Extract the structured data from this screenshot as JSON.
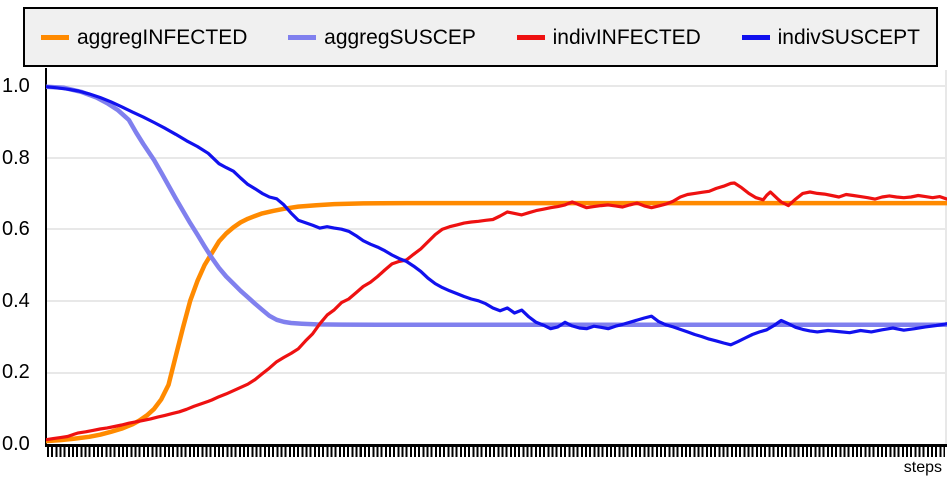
{
  "x_axis": {
    "label": "steps"
  },
  "y_axis": {
    "labels": [
      "1.0",
      "0.8",
      "0.6",
      "0.4",
      "0.2",
      "0.0"
    ]
  },
  "colors": {
    "aggreg_infected": "#FF8A00",
    "aggreg_suscep": "#8080EE",
    "indiv_infected": "#EE1111",
    "indiv_suscept": "#1111EE",
    "legend_background": "#F0F0F0",
    "legend_border": "#000000",
    "gridline": "#E8E8E8",
    "axis": "#000000"
  },
  "chart_data": {
    "type": "line",
    "title": "",
    "xlabel": "steps",
    "ylabel": "",
    "xlim_steps": [
      0,
      250
    ],
    "ylim": [
      0,
      1
    ],
    "y_ticks": [
      1.0,
      0.8,
      0.6,
      0.4,
      0.2,
      0.0
    ],
    "grid": true,
    "legend_position": "top",
    "series": [
      {
        "name": "aggregINFECTED",
        "color": "#FF8A00",
        "group": "aggregate",
        "points": [
          [
            0,
            0.008
          ],
          [
            4,
            0.011
          ],
          [
            8,
            0.015
          ],
          [
            12,
            0.02
          ],
          [
            15,
            0.026
          ],
          [
            18,
            0.034
          ],
          [
            21,
            0.043
          ],
          [
            24,
            0.055
          ],
          [
            26,
            0.066
          ],
          [
            28,
            0.08
          ],
          [
            30,
            0.098
          ],
          [
            32,
            0.125
          ],
          [
            34,
            0.165
          ],
          [
            36,
            0.245
          ],
          [
            38,
            0.325
          ],
          [
            40,
            0.4
          ],
          [
            42,
            0.455
          ],
          [
            44,
            0.5
          ],
          [
            46,
            0.533
          ],
          [
            48,
            0.566
          ],
          [
            50,
            0.588
          ],
          [
            52,
            0.605
          ],
          [
            54,
            0.619
          ],
          [
            56,
            0.629
          ],
          [
            58,
            0.637
          ],
          [
            60,
            0.644
          ],
          [
            63,
            0.651
          ],
          [
            66,
            0.657
          ],
          [
            70,
            0.663
          ],
          [
            75,
            0.667
          ],
          [
            80,
            0.67
          ],
          [
            88,
            0.672
          ],
          [
            100,
            0.673
          ],
          [
            250,
            0.673
          ]
        ]
      },
      {
        "name": "aggregSUSCEP",
        "color": "#8080EE",
        "group": "aggregate",
        "points": [
          [
            0,
            0.998
          ],
          [
            5,
            0.995
          ],
          [
            10,
            0.983
          ],
          [
            14,
            0.968
          ],
          [
            17,
            0.952
          ],
          [
            20,
            0.932
          ],
          [
            23,
            0.905
          ],
          [
            25,
            0.87
          ],
          [
            27,
            0.838
          ],
          [
            30,
            0.793
          ],
          [
            32,
            0.758
          ],
          [
            34,
            0.722
          ],
          [
            36,
            0.686
          ],
          [
            38,
            0.651
          ],
          [
            40,
            0.617
          ],
          [
            42,
            0.585
          ],
          [
            44,
            0.552
          ],
          [
            46,
            0.52
          ],
          [
            48,
            0.492
          ],
          [
            50,
            0.468
          ],
          [
            52,
            0.448
          ],
          [
            54,
            0.428
          ],
          [
            56,
            0.41
          ],
          [
            58,
            0.392
          ],
          [
            60,
            0.375
          ],
          [
            62,
            0.358
          ],
          [
            64,
            0.347
          ],
          [
            66,
            0.341
          ],
          [
            68,
            0.338
          ],
          [
            71,
            0.336
          ],
          [
            75,
            0.334
          ],
          [
            82,
            0.3335
          ],
          [
            92,
            0.333
          ],
          [
            250,
            0.333
          ]
        ]
      },
      {
        "name": "indivINFECTED",
        "color": "#EE1111",
        "group": "individual",
        "points": [
          [
            0,
            0.012
          ],
          [
            2,
            0.015
          ],
          [
            4,
            0.018
          ],
          [
            6,
            0.021
          ],
          [
            8,
            0.028
          ],
          [
            9,
            0.031
          ],
          [
            11,
            0.034
          ],
          [
            13,
            0.038
          ],
          [
            15,
            0.042
          ],
          [
            17,
            0.045
          ],
          [
            19,
            0.049
          ],
          [
            21,
            0.053
          ],
          [
            23,
            0.058
          ],
          [
            25,
            0.062
          ],
          [
            27,
            0.066
          ],
          [
            29,
            0.07
          ],
          [
            31,
            0.075
          ],
          [
            33,
            0.08
          ],
          [
            35,
            0.085
          ],
          [
            37,
            0.09
          ],
          [
            39,
            0.097
          ],
          [
            41,
            0.105
          ],
          [
            43,
            0.112
          ],
          [
            45,
            0.119
          ],
          [
            46,
            0.123
          ],
          [
            48,
            0.132
          ],
          [
            50,
            0.14
          ],
          [
            52,
            0.149
          ],
          [
            54,
            0.158
          ],
          [
            56,
            0.167
          ],
          [
            58,
            0.18
          ],
          [
            60,
            0.196
          ],
          [
            62,
            0.212
          ],
          [
            64,
            0.23
          ],
          [
            66,
            0.242
          ],
          [
            68,
            0.253
          ],
          [
            70,
            0.266
          ],
          [
            72,
            0.288
          ],
          [
            74,
            0.308
          ],
          [
            76,
            0.336
          ],
          [
            78,
            0.36
          ],
          [
            80,
            0.375
          ],
          [
            82,
            0.395
          ],
          [
            84,
            0.405
          ],
          [
            86,
            0.422
          ],
          [
            88,
            0.44
          ],
          [
            90,
            0.452
          ],
          [
            92,
            0.468
          ],
          [
            94,
            0.486
          ],
          [
            96,
            0.503
          ],
          [
            98,
            0.51
          ],
          [
            100,
            0.514
          ],
          [
            102,
            0.53
          ],
          [
            104,
            0.545
          ],
          [
            106,
            0.565
          ],
          [
            108,
            0.585
          ],
          [
            110,
            0.6
          ],
          [
            112,
            0.607
          ],
          [
            114,
            0.612
          ],
          [
            116,
            0.617
          ],
          [
            118,
            0.62
          ],
          [
            120,
            0.622
          ],
          [
            122,
            0.625
          ],
          [
            124,
            0.627
          ],
          [
            126,
            0.637
          ],
          [
            128,
            0.648
          ],
          [
            130,
            0.644
          ],
          [
            132,
            0.64
          ],
          [
            134,
            0.646
          ],
          [
            136,
            0.652
          ],
          [
            138,
            0.656
          ],
          [
            140,
            0.66
          ],
          [
            142,
            0.663
          ],
          [
            144,
            0.668
          ],
          [
            146,
            0.676
          ],
          [
            148,
            0.668
          ],
          [
            150,
            0.66
          ],
          [
            152,
            0.663
          ],
          [
            154,
            0.666
          ],
          [
            156,
            0.668
          ],
          [
            158,
            0.665
          ],
          [
            160,
            0.662
          ],
          [
            162,
            0.668
          ],
          [
            164,
            0.673
          ],
          [
            166,
            0.665
          ],
          [
            168,
            0.66
          ],
          [
            170,
            0.665
          ],
          [
            172,
            0.67
          ],
          [
            174,
            0.678
          ],
          [
            176,
            0.69
          ],
          [
            178,
            0.697
          ],
          [
            180,
            0.7
          ],
          [
            182,
            0.703
          ],
          [
            184,
            0.706
          ],
          [
            186,
            0.714
          ],
          [
            188,
            0.72
          ],
          [
            190,
            0.728
          ],
          [
            191,
            0.729
          ],
          [
            193,
            0.716
          ],
          [
            195,
            0.7
          ],
          [
            197,
            0.688
          ],
          [
            199,
            0.682
          ],
          [
            200,
            0.695
          ],
          [
            201,
            0.704
          ],
          [
            203,
            0.685
          ],
          [
            204,
            0.676
          ],
          [
            206,
            0.666
          ],
          [
            208,
            0.684
          ],
          [
            210,
            0.7
          ],
          [
            212,
            0.704
          ],
          [
            214,
            0.7
          ],
          [
            216,
            0.698
          ],
          [
            218,
            0.694
          ],
          [
            220,
            0.69
          ],
          [
            222,
            0.697
          ],
          [
            224,
            0.694
          ],
          [
            226,
            0.691
          ],
          [
            228,
            0.688
          ],
          [
            230,
            0.684
          ],
          [
            232,
            0.69
          ],
          [
            234,
            0.693
          ],
          [
            236,
            0.69
          ],
          [
            238,
            0.688
          ],
          [
            240,
            0.69
          ],
          [
            242,
            0.694
          ],
          [
            244,
            0.691
          ],
          [
            246,
            0.688
          ],
          [
            248,
            0.691
          ],
          [
            250,
            0.684
          ]
        ]
      },
      {
        "name": "indivSUSCEPT",
        "color": "#1111EE",
        "group": "individual",
        "points": [
          [
            0,
            0.998
          ],
          [
            3,
            0.995
          ],
          [
            6,
            0.991
          ],
          [
            9,
            0.986
          ],
          [
            12,
            0.978
          ],
          [
            15,
            0.968
          ],
          [
            18,
            0.956
          ],
          [
            21,
            0.942
          ],
          [
            24,
            0.927
          ],
          [
            27,
            0.913
          ],
          [
            30,
            0.898
          ],
          [
            33,
            0.882
          ],
          [
            36,
            0.865
          ],
          [
            39,
            0.847
          ],
          [
            42,
            0.831
          ],
          [
            45,
            0.812
          ],
          [
            48,
            0.783
          ],
          [
            50,
            0.772
          ],
          [
            52,
            0.762
          ],
          [
            54,
            0.743
          ],
          [
            56,
            0.725
          ],
          [
            58,
            0.713
          ],
          [
            60,
            0.7
          ],
          [
            62,
            0.69
          ],
          [
            64,
            0.685
          ],
          [
            66,
            0.668
          ],
          [
            68,
            0.645
          ],
          [
            70,
            0.625
          ],
          [
            72,
            0.618
          ],
          [
            74,
            0.611
          ],
          [
            76,
            0.603
          ],
          [
            78,
            0.607
          ],
          [
            80,
            0.603
          ],
          [
            82,
            0.6
          ],
          [
            84,
            0.594
          ],
          [
            86,
            0.582
          ],
          [
            88,
            0.568
          ],
          [
            90,
            0.558
          ],
          [
            92,
            0.55
          ],
          [
            94,
            0.54
          ],
          [
            96,
            0.528
          ],
          [
            98,
            0.518
          ],
          [
            100,
            0.51
          ],
          [
            102,
            0.497
          ],
          [
            104,
            0.482
          ],
          [
            106,
            0.463
          ],
          [
            108,
            0.448
          ],
          [
            110,
            0.437
          ],
          [
            112,
            0.428
          ],
          [
            114,
            0.42
          ],
          [
            116,
            0.412
          ],
          [
            118,
            0.405
          ],
          [
            120,
            0.4
          ],
          [
            122,
            0.392
          ],
          [
            124,
            0.38
          ],
          [
            126,
            0.372
          ],
          [
            128,
            0.38
          ],
          [
            130,
            0.366
          ],
          [
            132,
            0.374
          ],
          [
            134,
            0.355
          ],
          [
            136,
            0.34
          ],
          [
            138,
            0.332
          ],
          [
            140,
            0.322
          ],
          [
            142,
            0.327
          ],
          [
            144,
            0.34
          ],
          [
            146,
            0.33
          ],
          [
            148,
            0.324
          ],
          [
            150,
            0.322
          ],
          [
            152,
            0.329
          ],
          [
            154,
            0.326
          ],
          [
            156,
            0.322
          ],
          [
            158,
            0.329
          ],
          [
            160,
            0.334
          ],
          [
            162,
            0.34
          ],
          [
            164,
            0.346
          ],
          [
            166,
            0.352
          ],
          [
            168,
            0.357
          ],
          [
            170,
            0.342
          ],
          [
            172,
            0.333
          ],
          [
            174,
            0.327
          ],
          [
            176,
            0.32
          ],
          [
            178,
            0.313
          ],
          [
            180,
            0.306
          ],
          [
            182,
            0.3
          ],
          [
            184,
            0.293
          ],
          [
            186,
            0.288
          ],
          [
            188,
            0.282
          ],
          [
            190,
            0.277
          ],
          [
            192,
            0.286
          ],
          [
            194,
            0.296
          ],
          [
            196,
            0.306
          ],
          [
            198,
            0.313
          ],
          [
            200,
            0.319
          ],
          [
            202,
            0.331
          ],
          [
            204,
            0.345
          ],
          [
            206,
            0.336
          ],
          [
            208,
            0.326
          ],
          [
            210,
            0.32
          ],
          [
            212,
            0.316
          ],
          [
            214,
            0.313
          ],
          [
            217,
            0.317
          ],
          [
            220,
            0.314
          ],
          [
            223,
            0.311
          ],
          [
            226,
            0.317
          ],
          [
            229,
            0.313
          ],
          [
            232,
            0.319
          ],
          [
            235,
            0.324
          ],
          [
            238,
            0.318
          ],
          [
            241,
            0.322
          ],
          [
            244,
            0.327
          ],
          [
            247,
            0.331
          ],
          [
            250,
            0.336
          ]
        ]
      }
    ]
  }
}
